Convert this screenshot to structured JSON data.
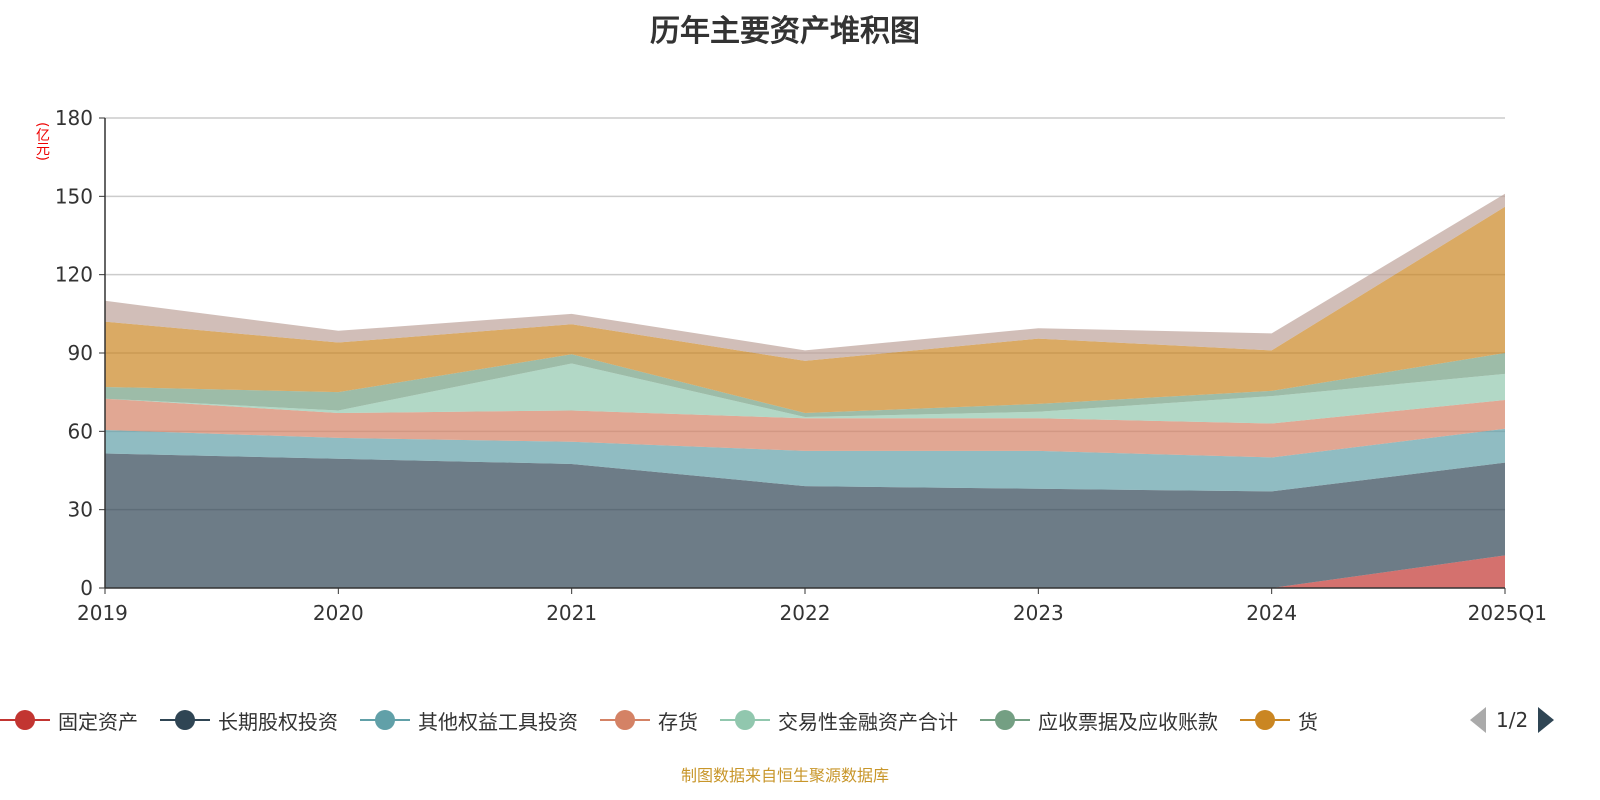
{
  "title": "历年主要资产堆积图",
  "footer": "制图数据来自恒生聚源数据库",
  "legend_page": "1/2",
  "chart_data": {
    "type": "area",
    "stacked": true,
    "title": "历年主要资产堆积图",
    "ylabel": "(亿元)",
    "ylim": [
      0,
      180
    ],
    "yticks": [
      0,
      30,
      60,
      90,
      120,
      150,
      180
    ],
    "categories": [
      "2019",
      "2020",
      "2021",
      "2022",
      "2023",
      "2024",
      "2025Q1"
    ],
    "grid": true,
    "legend_placement": "bottom",
    "series": [
      {
        "name": "固定资产",
        "color": "#c23531",
        "values": [
          0,
          0,
          0,
          0,
          0,
          0,
          12.5
        ]
      },
      {
        "name": "长期股权投资",
        "color": "#2f4554",
        "values": [
          51.5,
          49.5,
          47.5,
          39,
          38,
          37,
          35.5
        ]
      },
      {
        "name": "其他权益工具投资",
        "color": "#61a0a8",
        "values": [
          9,
          8,
          8.5,
          13.5,
          14.5,
          13,
          13
        ]
      },
      {
        "name": "存货",
        "color": "#d48265",
        "values": [
          12,
          9.5,
          12,
          12.5,
          12.5,
          13,
          11
        ]
      },
      {
        "name": "交易性金融资产合计",
        "color": "#91c7ae",
        "values": [
          0,
          1,
          18,
          0.5,
          2.5,
          10.5,
          10
        ]
      },
      {
        "name": "应收票据及应收账款",
        "color": "#749f83",
        "values": [
          4.5,
          7,
          3.5,
          1.5,
          3,
          2,
          8
        ]
      },
      {
        "name": "货",
        "color": "#ca8622",
        "values": [
          25,
          19,
          11.5,
          20,
          25,
          15.5,
          56
        ]
      },
      {
        "color": "#bda29a",
        "values": [
          8,
          4.5,
          4,
          4,
          4,
          6.5,
          5
        ]
      }
    ]
  }
}
